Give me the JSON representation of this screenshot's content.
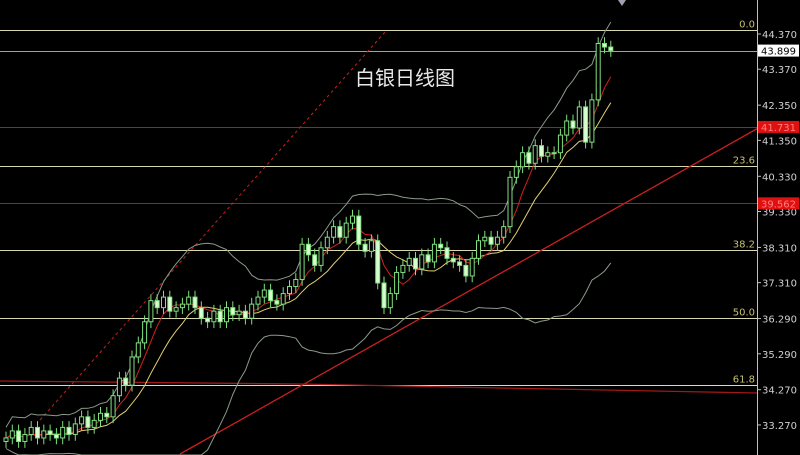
{
  "chart_data": {
    "type": "candlestick",
    "title": "白银日线图",
    "ylim": [
      32.7,
      44.9
    ],
    "y_ticks": [
      "44.370",
      "43.370",
      "42.350",
      "41.350",
      "40.330",
      "39.330",
      "38.310",
      "37.310",
      "36.290",
      "35.290",
      "34.270",
      "33.270"
    ],
    "y_tick_values": [
      44.37,
      43.37,
      42.35,
      41.35,
      40.33,
      39.33,
      38.31,
      37.31,
      36.29,
      35.29,
      34.27,
      33.27
    ],
    "current_price": {
      "label": "43.899",
      "value": 43.899
    },
    "red_levels": [
      {
        "label": "41.731",
        "value": 41.731
      },
      {
        "label": "39.562",
        "value": 39.562
      }
    ],
    "fibonacci": [
      {
        "label": "0.0",
        "value": 44.48
      },
      {
        "label": "23.6",
        "value": 40.62
      },
      {
        "label": "38.2",
        "value": 38.23
      },
      {
        "label": "50.0",
        "value": 36.3
      },
      {
        "label": "61.8",
        "value": 34.4
      }
    ],
    "close": [
      32.9,
      33.1,
      32.8,
      33.0,
      33.2,
      32.9,
      33.1,
      33.0,
      32.9,
      33.2,
      33.0,
      33.3,
      33.5,
      33.2,
      33.4,
      33.6,
      33.5,
      34.1,
      34.6,
      34.4,
      35.2,
      35.6,
      36.2,
      36.8,
      36.6,
      36.9,
      36.5,
      36.6,
      36.7,
      36.9,
      36.6,
      36.3,
      36.2,
      36.5,
      36.2,
      36.6,
      36.4,
      36.5,
      36.3,
      36.7,
      36.9,
      37.1,
      36.8,
      36.7,
      37.0,
      37.2,
      37.4,
      38.4,
      38.1,
      37.8,
      38.3,
      38.6,
      38.9,
      38.6,
      39.0,
      39.2,
      38.4,
      38.2,
      38.5,
      37.3,
      36.6,
      37.0,
      37.6,
      37.8,
      38.0,
      37.7,
      38.1,
      37.9,
      38.4,
      38.3,
      38.0,
      37.9,
      37.8,
      37.5,
      38.0,
      38.5,
      38.6,
      38.4,
      38.6,
      38.9,
      40.3,
      40.6,
      41.0,
      40.7,
      41.2,
      40.9,
      41.0,
      41.0,
      41.5,
      41.9,
      41.7,
      42.3,
      41.3,
      42.5,
      44.1,
      44.0,
      43.9
    ],
    "colors": {
      "up": "#7fe07f",
      "down": "#d8ffd0",
      "ma_fast": "#d02020",
      "ma_slow": "#e0d070",
      "bands": "#8a9a8a",
      "fib": "#d8d8b0",
      "red_level": "#c81010",
      "trend": "#c82020"
    }
  }
}
